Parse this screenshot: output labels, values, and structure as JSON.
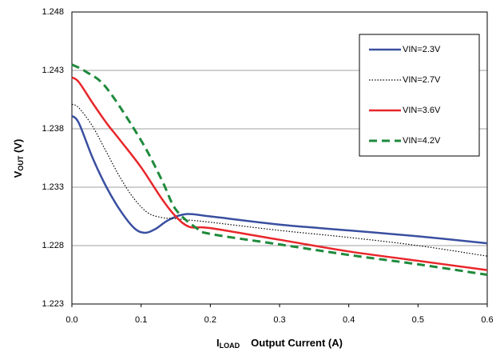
{
  "chart_data": {
    "type": "line",
    "ylabel": [
      "V",
      "OUT",
      " (V)"
    ],
    "xlabel": [
      "I",
      "LOAD",
      "Output Current (A)"
    ],
    "xlim": [
      0,
      0.6
    ],
    "xticks": [
      {
        "value": 0,
        "label": "0.0"
      },
      0.1,
      0.2,
      0.3,
      0.4,
      0.5,
      0.6
    ],
    "ylim": [
      1.223,
      1.248
    ],
    "yticks": [
      1.223,
      1.228,
      1.233,
      1.238,
      1.243,
      1.248
    ],
    "grid": true,
    "legend": "upper right",
    "series": [
      {
        "name": "VIN=2.3V",
        "color": "#3a4fa0",
        "dash": "solid",
        "x": [
          0,
          0.01,
          0.03,
          0.05,
          0.07,
          0.09,
          0.105,
          0.12,
          0.14,
          0.165,
          0.2,
          0.3,
          0.4,
          0.5,
          0.6
        ],
        "values": [
          1.2391,
          1.2385,
          1.2355,
          1.233,
          1.231,
          1.2295,
          1.2291,
          1.2294,
          1.2302,
          1.2307,
          1.2305,
          1.2298,
          1.2293,
          1.2288,
          1.2282
        ]
      },
      {
        "name": "VIN=2.7V",
        "color": "#000000",
        "dash": "dotted",
        "x": [
          0,
          0.01,
          0.03,
          0.05,
          0.07,
          0.09,
          0.11,
          0.13,
          0.15,
          0.2,
          0.3,
          0.4,
          0.5,
          0.6
        ],
        "values": [
          1.2401,
          1.2398,
          1.2382,
          1.236,
          1.2338,
          1.232,
          1.2308,
          1.2304,
          1.2303,
          1.23,
          1.2293,
          1.2287,
          1.228,
          1.2271
        ]
      },
      {
        "name": "VIN=3.6V",
        "color": "#e8262a",
        "dash": "solid",
        "x": [
          0,
          0.01,
          0.03,
          0.05,
          0.07,
          0.1,
          0.13,
          0.15,
          0.17,
          0.2,
          0.3,
          0.4,
          0.5,
          0.6
        ],
        "values": [
          1.2424,
          1.242,
          1.2402,
          1.2385,
          1.237,
          1.2347,
          1.232,
          1.2305,
          1.2296,
          1.2295,
          1.2285,
          1.2275,
          1.2267,
          1.2259
        ]
      },
      {
        "name": "VIN=4.2V",
        "color": "#1f8a3c",
        "dash": "dashed",
        "x": [
          0,
          0.02,
          0.05,
          0.1,
          0.13,
          0.15,
          0.18,
          0.2,
          0.3,
          0.4,
          0.5,
          0.6
        ],
        "values": [
          1.2435,
          1.2429,
          1.2415,
          1.237,
          1.2336,
          1.2311,
          1.2295,
          1.229,
          1.2281,
          1.2272,
          1.2264,
          1.2255
        ]
      }
    ]
  }
}
